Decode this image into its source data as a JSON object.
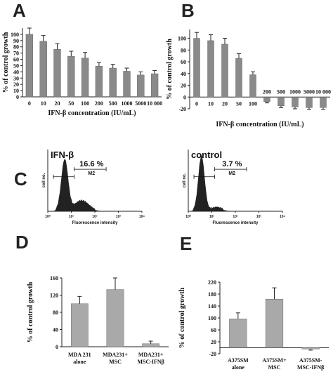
{
  "panel_letters": {
    "A": "A",
    "B": "B",
    "C": "C",
    "D": "D",
    "E": "E"
  },
  "colors": {
    "bar": "#8a8a8a",
    "bar_light": "#a9a9a9",
    "axis": "#222222",
    "hist": "#222222"
  },
  "chart_data": [
    {
      "id": "A",
      "type": "bar",
      "categories": [
        "0",
        "10",
        "20",
        "50",
        "100",
        "200",
        "500",
        "1000",
        "5000",
        "10 000"
      ],
      "values": [
        100,
        89,
        76,
        65,
        62,
        49,
        46,
        41,
        35,
        37
      ],
      "errors": [
        10,
        9,
        9,
        8,
        9,
        6,
        6,
        5,
        5,
        5
      ],
      "ylabel": "% of control growth",
      "xlabel": "IFN-β concentration (IU/mL)",
      "yticks": [
        0,
        10,
        20,
        30,
        40,
        50,
        60,
        70,
        80,
        90,
        100
      ],
      "ylim": [
        0,
        110
      ]
    },
    {
      "id": "B",
      "type": "bar",
      "categories": [
        "0",
        "10",
        "20",
        "50",
        "100",
        "200",
        "500",
        "1000",
        "5000",
        "10 000"
      ],
      "values": [
        100,
        96,
        90,
        66,
        38,
        -8,
        -15,
        -17,
        -18,
        -18
      ],
      "errors": [
        10,
        10,
        10,
        8,
        5,
        2,
        3,
        3,
        3,
        3
      ],
      "ylabel": "% of control growth",
      "xlabel": "IFN-β concentration (IU/mL)",
      "yticks": [
        -20,
        0,
        20,
        40,
        60,
        80,
        100
      ],
      "ylim": [
        -20,
        115
      ]
    },
    {
      "id": "C",
      "type": "histogram",
      "panels": [
        {
          "label": "IFN-β",
          "percent": "16.6 %",
          "gate": "M2",
          "ylabel": "cell no.",
          "xlabel": "Fluorescence intensity"
        },
        {
          "label": "control",
          "percent": "3.7 %",
          "gate": "M2",
          "ylabel": "cell no.",
          "xlabel": "Fluorescence intensity"
        }
      ],
      "xticks": [
        "10⁰",
        "10¹",
        "10²",
        "10³",
        "10⁴"
      ]
    },
    {
      "id": "D",
      "type": "bar",
      "categories": [
        "MDA 231\nalone",
        "MDA231+\nMSC",
        "MDA231+\nMSC-IFNβ"
      ],
      "values": [
        100,
        133,
        7
      ],
      "errors": [
        17,
        27,
        6
      ],
      "ylabel": "% of control growth",
      "yticks": [
        0,
        40,
        80,
        120,
        160
      ],
      "ylim": [
        0,
        160
      ]
    },
    {
      "id": "E",
      "type": "bar",
      "categories": [
        "A375SM\nalone",
        "A375SM+\nMSC",
        "A375SM-\nMSC-IFNβ"
      ],
      "values": [
        97,
        163,
        -4
      ],
      "errors": [
        20,
        38,
        4
      ],
      "ylabel": "% of control growth",
      "yticks": [
        -20,
        20,
        60,
        100,
        140,
        180,
        220
      ],
      "ylim": [
        -20,
        220
      ]
    }
  ]
}
